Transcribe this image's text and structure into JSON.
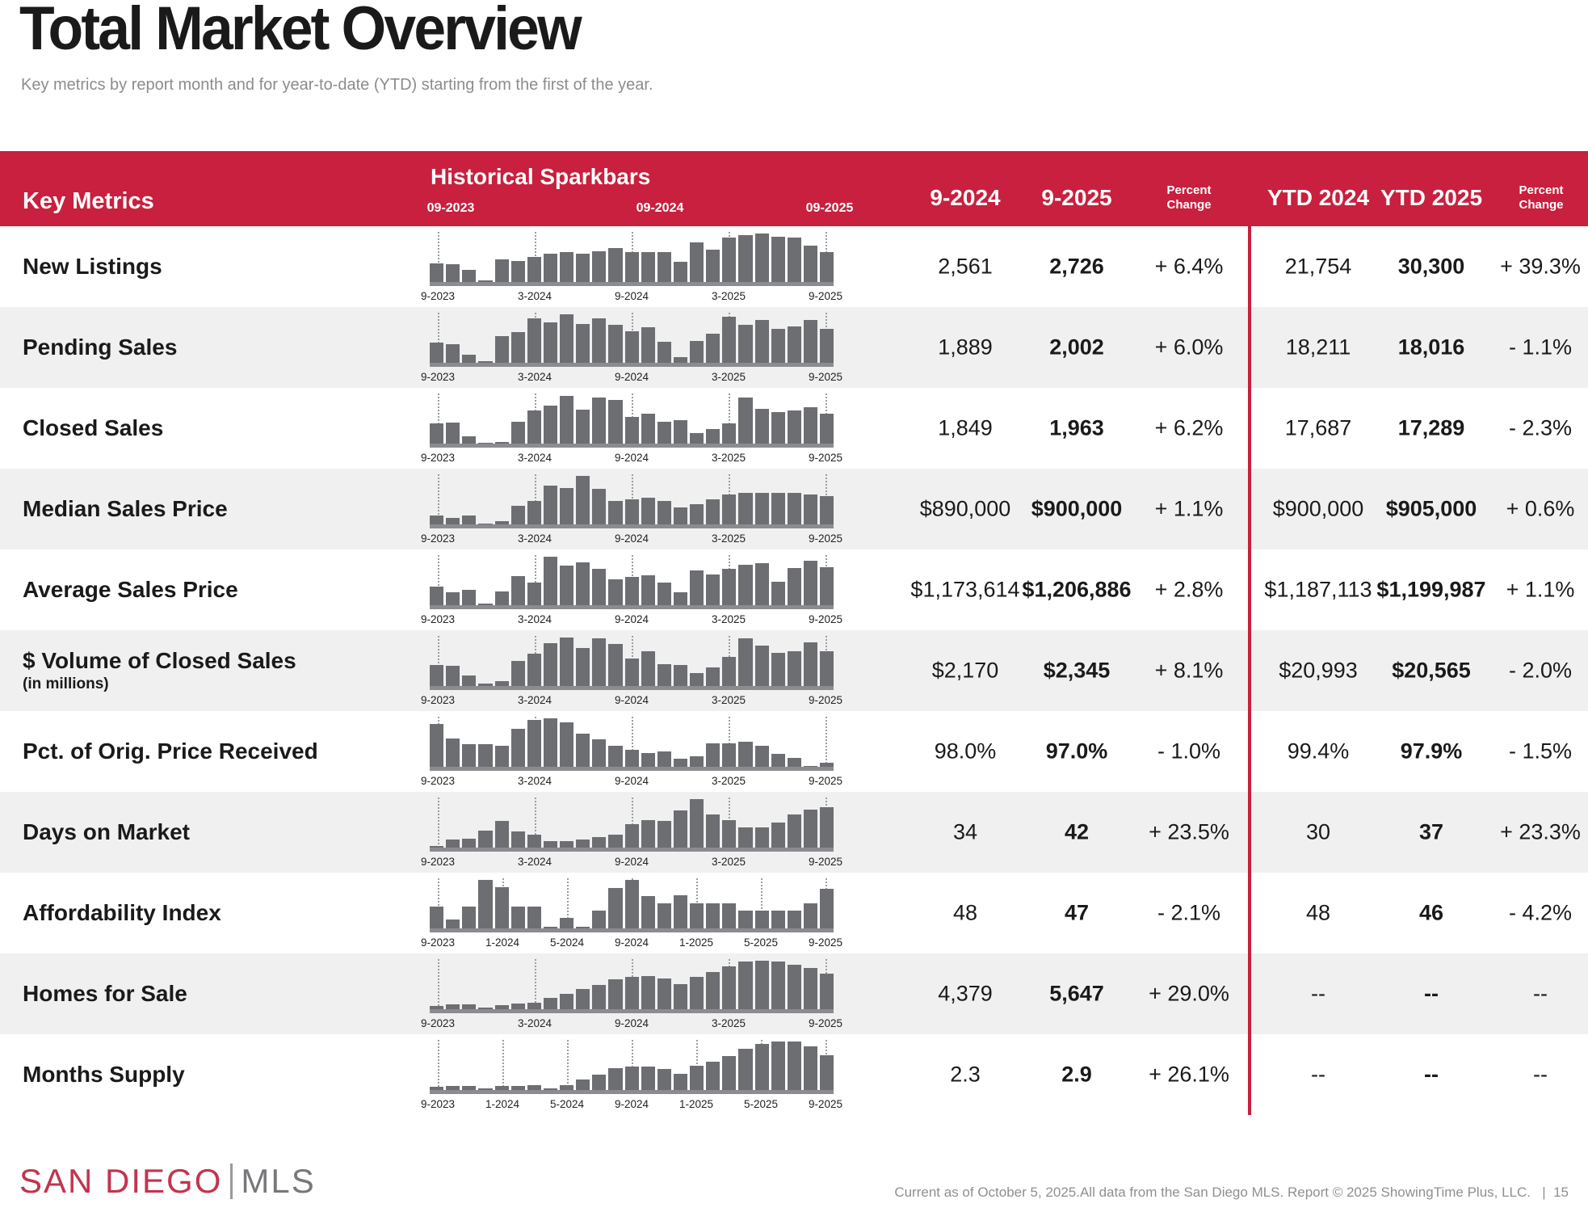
{
  "page": {
    "title": "Total Market Overview",
    "subtitle": "Key metrics by report month and for year-to-date (YTD) starting from the first of the year.",
    "footer": {
      "logo_primary": "SAN DIEGO",
      "logo_secondary": "MLS",
      "attribution": "Current as of October 5, 2025.All data from the San Diego MLS. Report © 2025 ShowingTime Plus, LLC.",
      "separator": "|",
      "page_number": "15"
    }
  },
  "colors": {
    "header_red": "#C8203E",
    "divider_red": "#C8203E",
    "bar_gray": "#6D6E71",
    "baseline_gray": "#8A8C8F",
    "row_alt_bg": "#F0F0F0",
    "logo_red": "#C2344F",
    "logo_gray": "#77787B"
  },
  "table": {
    "header": {
      "key_metrics": "Key Metrics",
      "sparkbars_title": "Historical Sparkbars",
      "spark_axis_labels": [
        "09-2023",
        "09-2024",
        "09-2025"
      ],
      "columns": [
        "9-2024",
        "9-2025",
        "Percent Change",
        "YTD 2024",
        "YTD 2025",
        "Percent Change"
      ]
    },
    "rows": [
      {
        "label": "New Listings",
        "sublabel": "",
        "values": {
          "m2024": "2,561",
          "m2025": "2,726",
          "pct": "+ 6.4%",
          "ytd2024": "21,754",
          "ytd2025": "30,300",
          "ytd_pct": "+ 39.3%"
        },
        "spark": {
          "type": "bar",
          "ticks": [
            "9-2023",
            "3-2024",
            "9-2024",
            "3-2025",
            "9-2025"
          ],
          "tick_indices": [
            0,
            6,
            12,
            18,
            24
          ],
          "bars": [
            0.38,
            0.37,
            0.25,
            0.04,
            0.47,
            0.44,
            0.51,
            0.58,
            0.62,
            0.59,
            0.64,
            0.7,
            0.61,
            0.62,
            0.61,
            0.41,
            0.81,
            0.66,
            0.92,
            0.97,
            1.0,
            0.93,
            0.92,
            0.75,
            0.61
          ]
        }
      },
      {
        "label": "Pending Sales",
        "sublabel": "",
        "values": {
          "m2024": "1,889",
          "m2025": "2,002",
          "pct": "+ 6.0%",
          "ytd2024": "18,211",
          "ytd2025": "18,016",
          "ytd_pct": "- 1.1%"
        },
        "spark": {
          "type": "bar",
          "ticks": [
            "9-2023",
            "3-2024",
            "9-2024",
            "3-2025",
            "9-2025"
          ],
          "tick_indices": [
            0,
            6,
            12,
            18,
            24
          ],
          "bars": [
            0.42,
            0.38,
            0.17,
            0.03,
            0.55,
            0.63,
            0.92,
            0.83,
            1.0,
            0.8,
            0.92,
            0.78,
            0.65,
            0.73,
            0.43,
            0.12,
            0.45,
            0.6,
            0.95,
            0.78,
            0.88,
            0.7,
            0.75,
            0.88,
            0.7
          ]
        }
      },
      {
        "label": "Closed Sales",
        "sublabel": "",
        "values": {
          "m2024": "1,849",
          "m2025": "1,963",
          "pct": "+ 6.2%",
          "ytd2024": "17,687",
          "ytd2025": "17,289",
          "ytd_pct": "- 2.3%"
        },
        "spark": {
          "type": "bar",
          "ticks": [
            "9-2023",
            "3-2024",
            "9-2024",
            "3-2025",
            "9-2025"
          ],
          "tick_indices": [
            0,
            6,
            12,
            18,
            24
          ],
          "bars": [
            0.42,
            0.43,
            0.15,
            0.02,
            0.04,
            0.45,
            0.68,
            0.78,
            0.98,
            0.7,
            0.95,
            0.9,
            0.55,
            0.62,
            0.45,
            0.48,
            0.22,
            0.3,
            0.42,
            0.95,
            0.72,
            0.65,
            0.68,
            0.75,
            0.62
          ]
        }
      },
      {
        "label": "Median Sales Price",
        "sublabel": "",
        "values": {
          "m2024": "$890,000",
          "m2025": "$900,000",
          "pct": "+ 1.1%",
          "ytd2024": "$900,000",
          "ytd2025": "$905,000",
          "ytd_pct": "+ 0.6%"
        },
        "spark": {
          "type": "bar",
          "ticks": [
            "9-2023",
            "3-2024",
            "9-2024",
            "3-2025",
            "9-2025"
          ],
          "tick_indices": [
            0,
            6,
            12,
            18,
            24
          ],
          "bars": [
            0.18,
            0.14,
            0.19,
            0.02,
            0.07,
            0.38,
            0.48,
            0.8,
            0.75,
            1.0,
            0.73,
            0.48,
            0.52,
            0.55,
            0.48,
            0.35,
            0.42,
            0.52,
            0.62,
            0.65,
            0.65,
            0.65,
            0.65,
            0.62,
            0.58
          ]
        }
      },
      {
        "label": "Average Sales Price",
        "sublabel": "",
        "values": {
          "m2024": "$1,173,614",
          "m2025": "$1,206,886",
          "pct": "+ 2.8%",
          "ytd2024": "$1,187,113",
          "ytd2025": "$1,199,987",
          "ytd_pct": "+ 1.1%"
        },
        "spark": {
          "type": "bar",
          "ticks": [
            "9-2023",
            "3-2024",
            "9-2024",
            "3-2025",
            "9-2025"
          ],
          "tick_indices": [
            0,
            6,
            12,
            18,
            24
          ],
          "bars": [
            0.38,
            0.27,
            0.31,
            0.04,
            0.29,
            0.6,
            0.47,
            1.0,
            0.82,
            0.89,
            0.75,
            0.53,
            0.58,
            0.62,
            0.46,
            0.26,
            0.72,
            0.63,
            0.75,
            0.84,
            0.87,
            0.48,
            0.76,
            0.91,
            0.79
          ]
        }
      },
      {
        "label": "$ Volume of Closed Sales",
        "sublabel": "(in millions)",
        "values": {
          "m2024": "$2,170",
          "m2025": "$2,345",
          "pct": "+ 8.1%",
          "ytd2024": "$20,993",
          "ytd2025": "$20,565",
          "ytd_pct": "- 2.0%"
        },
        "spark": {
          "type": "bar",
          "ticks": [
            "9-2023",
            "3-2024",
            "9-2024",
            "3-2025",
            "9-2025"
          ],
          "tick_indices": [
            0,
            6,
            12,
            18,
            24
          ],
          "bars": [
            0.43,
            0.42,
            0.21,
            0.05,
            0.1,
            0.51,
            0.67,
            0.88,
            1.0,
            0.79,
            0.98,
            0.86,
            0.57,
            0.71,
            0.45,
            0.44,
            0.26,
            0.39,
            0.6,
            0.98,
            0.83,
            0.69,
            0.72,
            0.9,
            0.72
          ]
        }
      },
      {
        "label": "Pct. of Orig. Price Received",
        "sublabel": "",
        "values": {
          "m2024": "98.0%",
          "m2025": "97.0%",
          "pct": "- 1.0%",
          "ytd2024": "99.4%",
          "ytd2025": "97.9%",
          "ytd_pct": "- 1.5%"
        },
        "spark": {
          "type": "bar",
          "ticks": [
            "9-2023",
            "3-2024",
            "9-2024",
            "3-2025",
            "9-2025"
          ],
          "tick_indices": [
            0,
            6,
            12,
            18,
            24
          ],
          "bars": [
            0.88,
            0.59,
            0.47,
            0.47,
            0.43,
            0.78,
            0.96,
            1.0,
            0.91,
            0.69,
            0.57,
            0.43,
            0.35,
            0.29,
            0.31,
            0.16,
            0.22,
            0.49,
            0.49,
            0.52,
            0.43,
            0.26,
            0.19,
            0.02,
            0.09
          ]
        }
      },
      {
        "label": "Days on Market",
        "sublabel": "",
        "values": {
          "m2024": "34",
          "m2025": "42",
          "pct": "+ 23.5%",
          "ytd2024": "30",
          "ytd2025": "37",
          "ytd_pct": "+ 23.3%"
        },
        "spark": {
          "type": "bar",
          "ticks": [
            "9-2023",
            "3-2024",
            "9-2024",
            "3-2025",
            "9-2025"
          ],
          "tick_indices": [
            0,
            6,
            12,
            18,
            24
          ],
          "bars": [
            0.04,
            0.16,
            0.19,
            0.35,
            0.55,
            0.34,
            0.27,
            0.14,
            0.13,
            0.16,
            0.22,
            0.26,
            0.49,
            0.56,
            0.55,
            0.76,
            1.0,
            0.68,
            0.56,
            0.41,
            0.41,
            0.51,
            0.68,
            0.79,
            0.84
          ]
        }
      },
      {
        "label": "Affordability Index",
        "sublabel": "",
        "values": {
          "m2024": "48",
          "m2025": "47",
          "pct": "- 2.1%",
          "ytd2024": "48",
          "ytd2025": "46",
          "ytd_pct": "- 4.2%"
        },
        "spark": {
          "type": "bar",
          "ticks": [
            "9-2023",
            "1-2024",
            "5-2024",
            "9-2024",
            "1-2025",
            "5-2025",
            "9-2025"
          ],
          "tick_indices": [
            0,
            4,
            8,
            12,
            16,
            20,
            24
          ],
          "bars": [
            0.45,
            0.18,
            0.45,
            1.0,
            0.85,
            0.45,
            0.45,
            0.04,
            0.21,
            0.04,
            0.36,
            0.83,
            1.0,
            0.67,
            0.51,
            0.68,
            0.51,
            0.51,
            0.51,
            0.36,
            0.36,
            0.36,
            0.36,
            0.51,
            0.82
          ]
        }
      },
      {
        "label": "Homes for Sale",
        "sublabel": "",
        "values": {
          "m2024": "4,379",
          "m2025": "5,647",
          "pct": "+ 29.0%",
          "ytd2024": "--",
          "ytd2025": "--",
          "ytd_pct": "--"
        },
        "spark": {
          "type": "bar",
          "ticks": [
            "9-2023",
            "3-2024",
            "9-2024",
            "3-2025",
            "9-2025"
          ],
          "tick_indices": [
            0,
            6,
            12,
            18,
            24
          ],
          "bars": [
            0.06,
            0.1,
            0.1,
            0.04,
            0.09,
            0.11,
            0.14,
            0.23,
            0.31,
            0.41,
            0.5,
            0.62,
            0.66,
            0.68,
            0.64,
            0.52,
            0.66,
            0.76,
            0.88,
            0.98,
            1.0,
            0.98,
            0.91,
            0.85,
            0.73
          ]
        }
      },
      {
        "label": "Months Supply",
        "sublabel": "",
        "values": {
          "m2024": "2.3",
          "m2025": "2.9",
          "pct": "+ 26.1%",
          "ytd2024": "--",
          "ytd2025": "--",
          "ytd_pct": "--"
        },
        "spark": {
          "type": "bar",
          "ticks": [
            "9-2023",
            "1-2024",
            "5-2024",
            "9-2024",
            "1-2025",
            "5-2025",
            "9-2025"
          ],
          "tick_indices": [
            0,
            4,
            8,
            12,
            16,
            20,
            24
          ],
          "bars": [
            0.07,
            0.09,
            0.09,
            0.03,
            0.08,
            0.09,
            0.1,
            0.03,
            0.1,
            0.22,
            0.32,
            0.45,
            0.48,
            0.48,
            0.43,
            0.33,
            0.5,
            0.58,
            0.7,
            0.85,
            0.95,
            1.0,
            1.0,
            0.9,
            0.72
          ]
        }
      }
    ]
  }
}
